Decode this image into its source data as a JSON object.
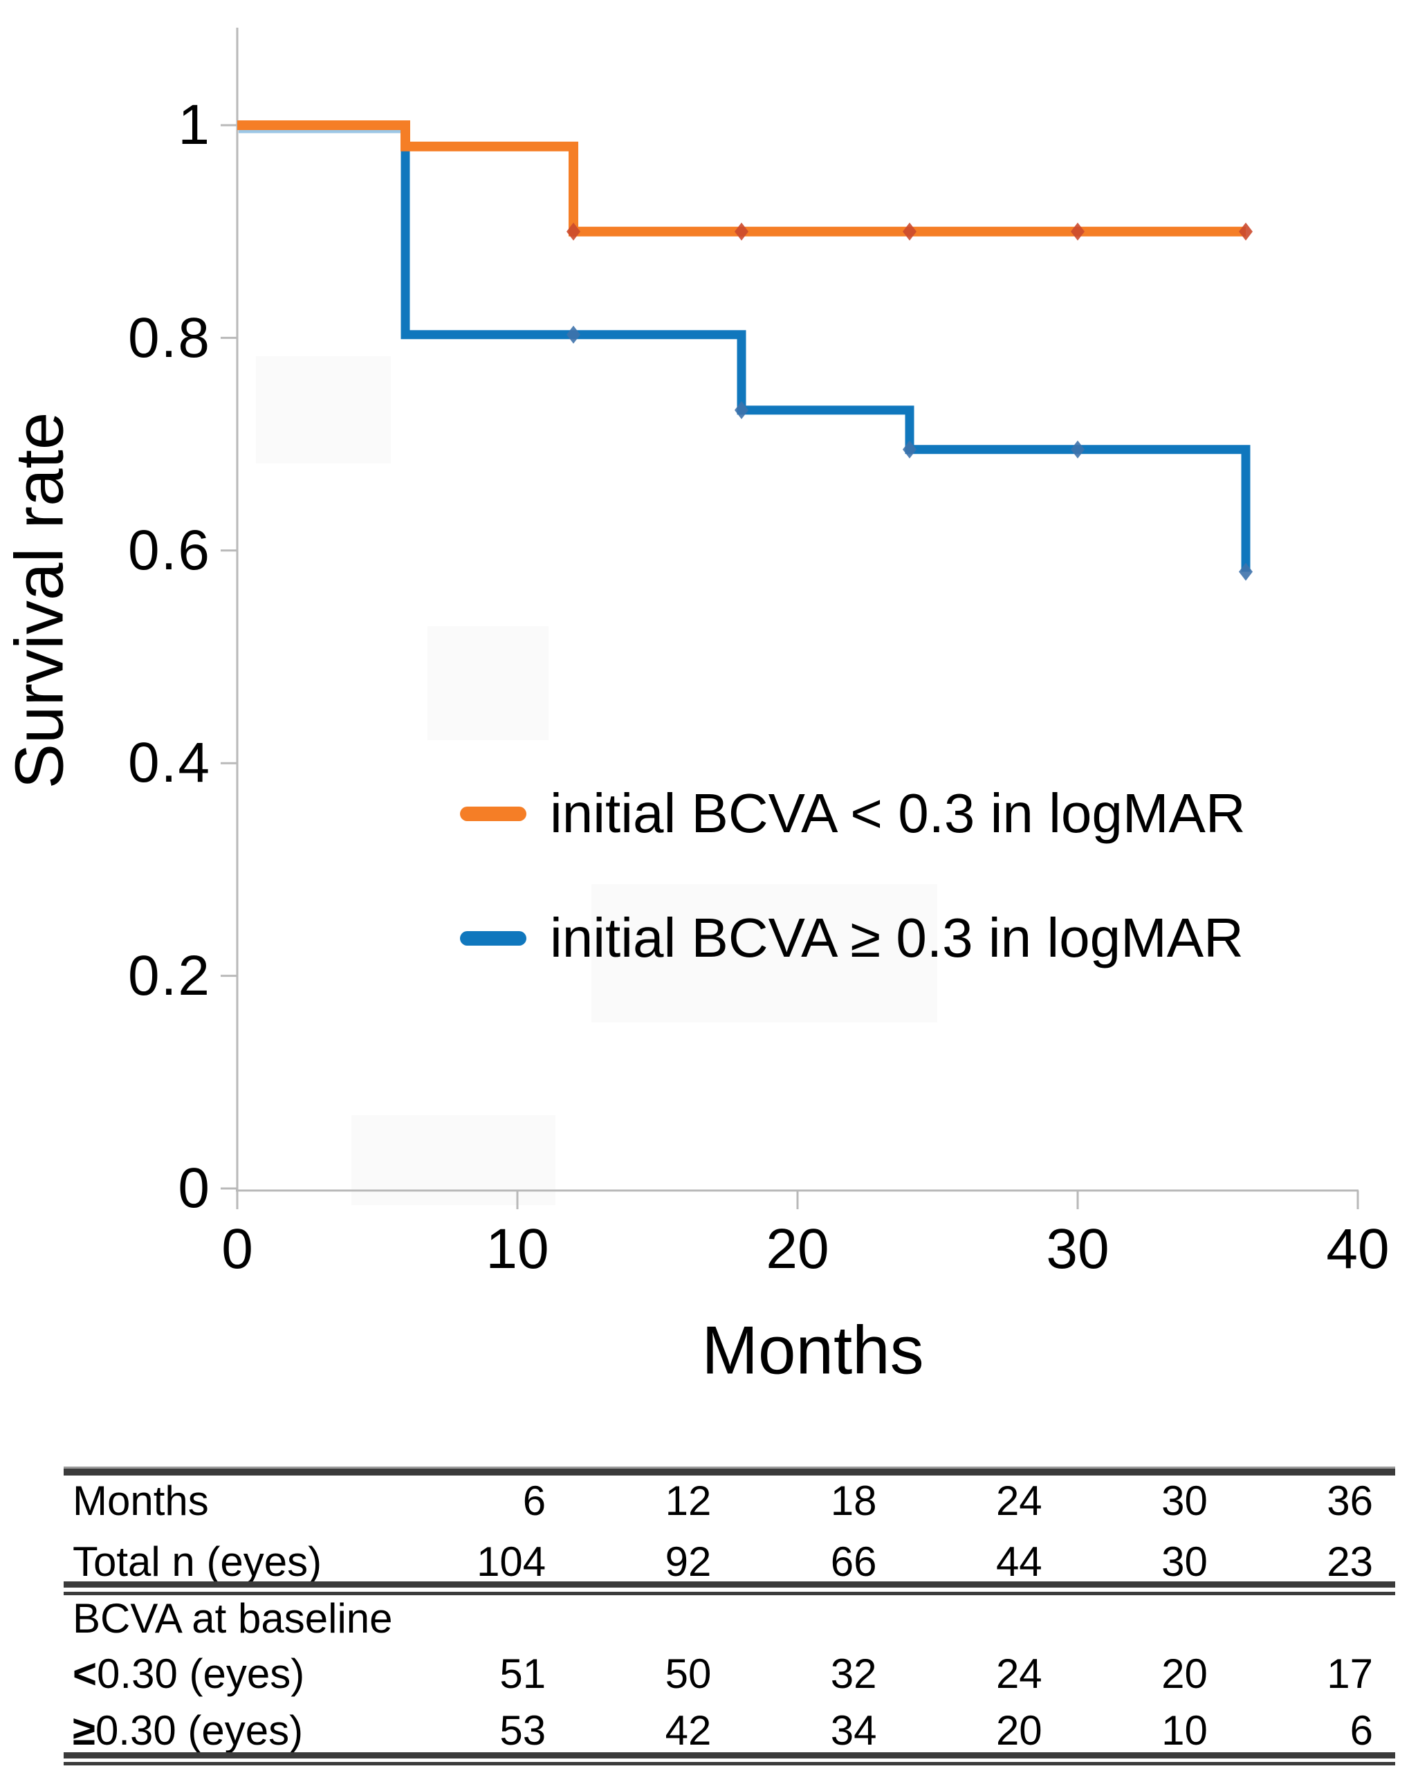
{
  "chart_data": {
    "type": "line",
    "subtype": "kaplan-meier-step-curves",
    "title": "",
    "xlabel": "Months",
    "ylabel": "Survival rate",
    "xlim": [
      0,
      40
    ],
    "ylim": [
      0,
      1
    ],
    "grid": false,
    "legend_position": "inside-center",
    "axis_color": "#B9B9B9",
    "xticks": [
      0,
      10,
      20,
      30,
      40
    ],
    "yticks": [
      1,
      0.8,
      0.6,
      0.4,
      0.2,
      0
    ],
    "xtick_labels": [
      "0",
      "10",
      "20",
      "30",
      "40"
    ],
    "ytick_labels": [
      "1",
      "0.8",
      "0.6",
      "0.4",
      "0.2",
      "0"
    ],
    "series": [
      {
        "name": "initial BCVA < 0.3 in logMAR",
        "color": "#F57E26",
        "marker_color": "#CB4A2E",
        "marker": "diamond",
        "line_width": 14,
        "steps": [
          [
            0,
            1.0
          ],
          [
            6,
            1.0
          ],
          [
            6,
            0.98
          ],
          [
            12,
            0.98
          ],
          [
            12,
            0.9
          ],
          [
            36,
            0.9
          ]
        ],
        "markers": [
          [
            12,
            0.9
          ],
          [
            18,
            0.9
          ],
          [
            24,
            0.9
          ],
          [
            30,
            0.9
          ],
          [
            36,
            0.9
          ]
        ]
      },
      {
        "name": "initial BCVA ≥ 0.3 in logMAR",
        "color": "#1077BD",
        "marker_color": "#3E72AB",
        "marker": "diamond",
        "line_width": 13,
        "steps": [
          [
            0,
            1.0
          ],
          [
            6,
            1.0
          ],
          [
            6,
            0.803
          ],
          [
            18,
            0.803
          ],
          [
            18,
            0.732
          ],
          [
            24,
            0.732
          ],
          [
            24,
            0.695
          ],
          [
            36,
            0.695
          ],
          [
            36,
            0.58
          ]
        ],
        "markers": [
          [
            12,
            0.803
          ],
          [
            18,
            0.732
          ],
          [
            24,
            0.695
          ],
          [
            30,
            0.695
          ],
          [
            36,
            0.58
          ]
        ]
      }
    ]
  },
  "legend": {
    "items": [
      {
        "label": "initial BCVA < 0.3 in logMAR"
      },
      {
        "label": "initial BCVA ≥ 0.3 in logMAR"
      }
    ]
  },
  "risk_table": {
    "months_row": {
      "label": "Months",
      "values": [
        "6",
        "12",
        "18",
        "24",
        "30",
        "36"
      ]
    },
    "total_row": {
      "label": "Total n (eyes)",
      "values": [
        "104",
        "92",
        "66",
        "44",
        "30",
        "23"
      ]
    },
    "section_label": "BCVA at baseline",
    "lt_row": {
      "symbol": "<",
      "label": "0.30 (eyes)",
      "values": [
        "51",
        "50",
        "32",
        "24",
        "20",
        "17"
      ]
    },
    "ge_row": {
      "symbol": "≥",
      "label": "0.30 (eyes)",
      "values": [
        "53",
        "42",
        "34",
        "20",
        "10",
        "6"
      ]
    }
  }
}
